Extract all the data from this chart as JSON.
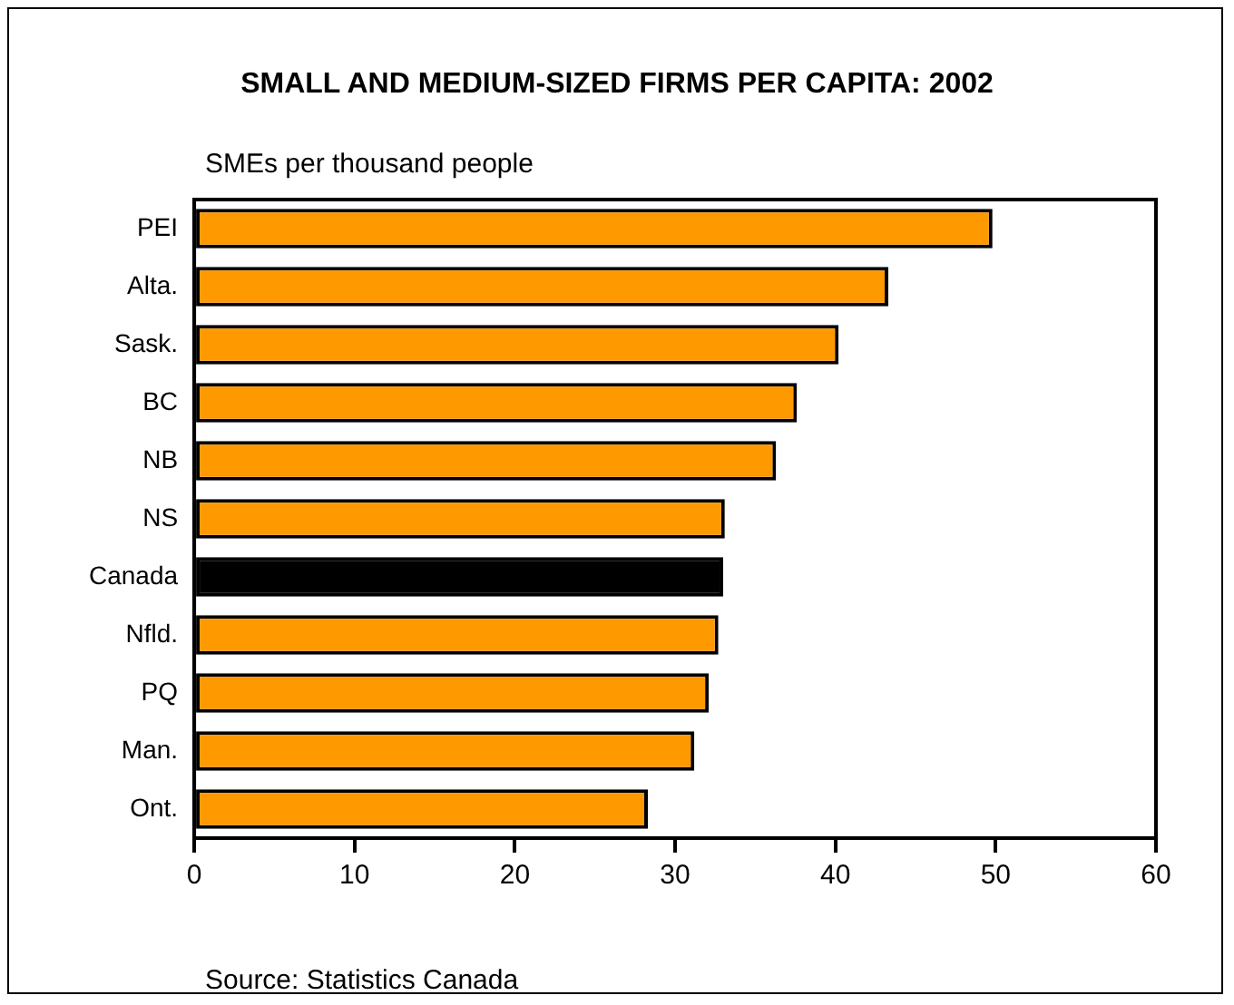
{
  "chart_data": {
    "type": "bar",
    "orientation": "horizontal",
    "title": "SMALL AND MEDIUM-SIZED FIRMS PER CAPITA: 2002",
    "xlabel": "SMEs per thousand people",
    "categories": [
      "PEI",
      "Alta.",
      "Sask.",
      "BC",
      "NB",
      "NS",
      "Canada",
      "Nfld.",
      "PQ",
      "Man.",
      "Ont."
    ],
    "values": [
      49.8,
      43.3,
      40.2,
      37.6,
      36.3,
      33.1,
      33.0,
      32.7,
      32.1,
      31.2,
      28.3
    ],
    "colors": [
      "#ff9900",
      "#ff9900",
      "#ff9900",
      "#ff9900",
      "#ff9900",
      "#ff9900",
      "#000000",
      "#ff9900",
      "#ff9900",
      "#ff9900",
      "#ff9900"
    ],
    "xlim": [
      0,
      60
    ],
    "xticks": [
      0,
      10,
      20,
      30,
      40,
      50,
      60
    ],
    "grid": false,
    "legend": false,
    "annotations": [
      "Source: Statistics Canada"
    ]
  }
}
